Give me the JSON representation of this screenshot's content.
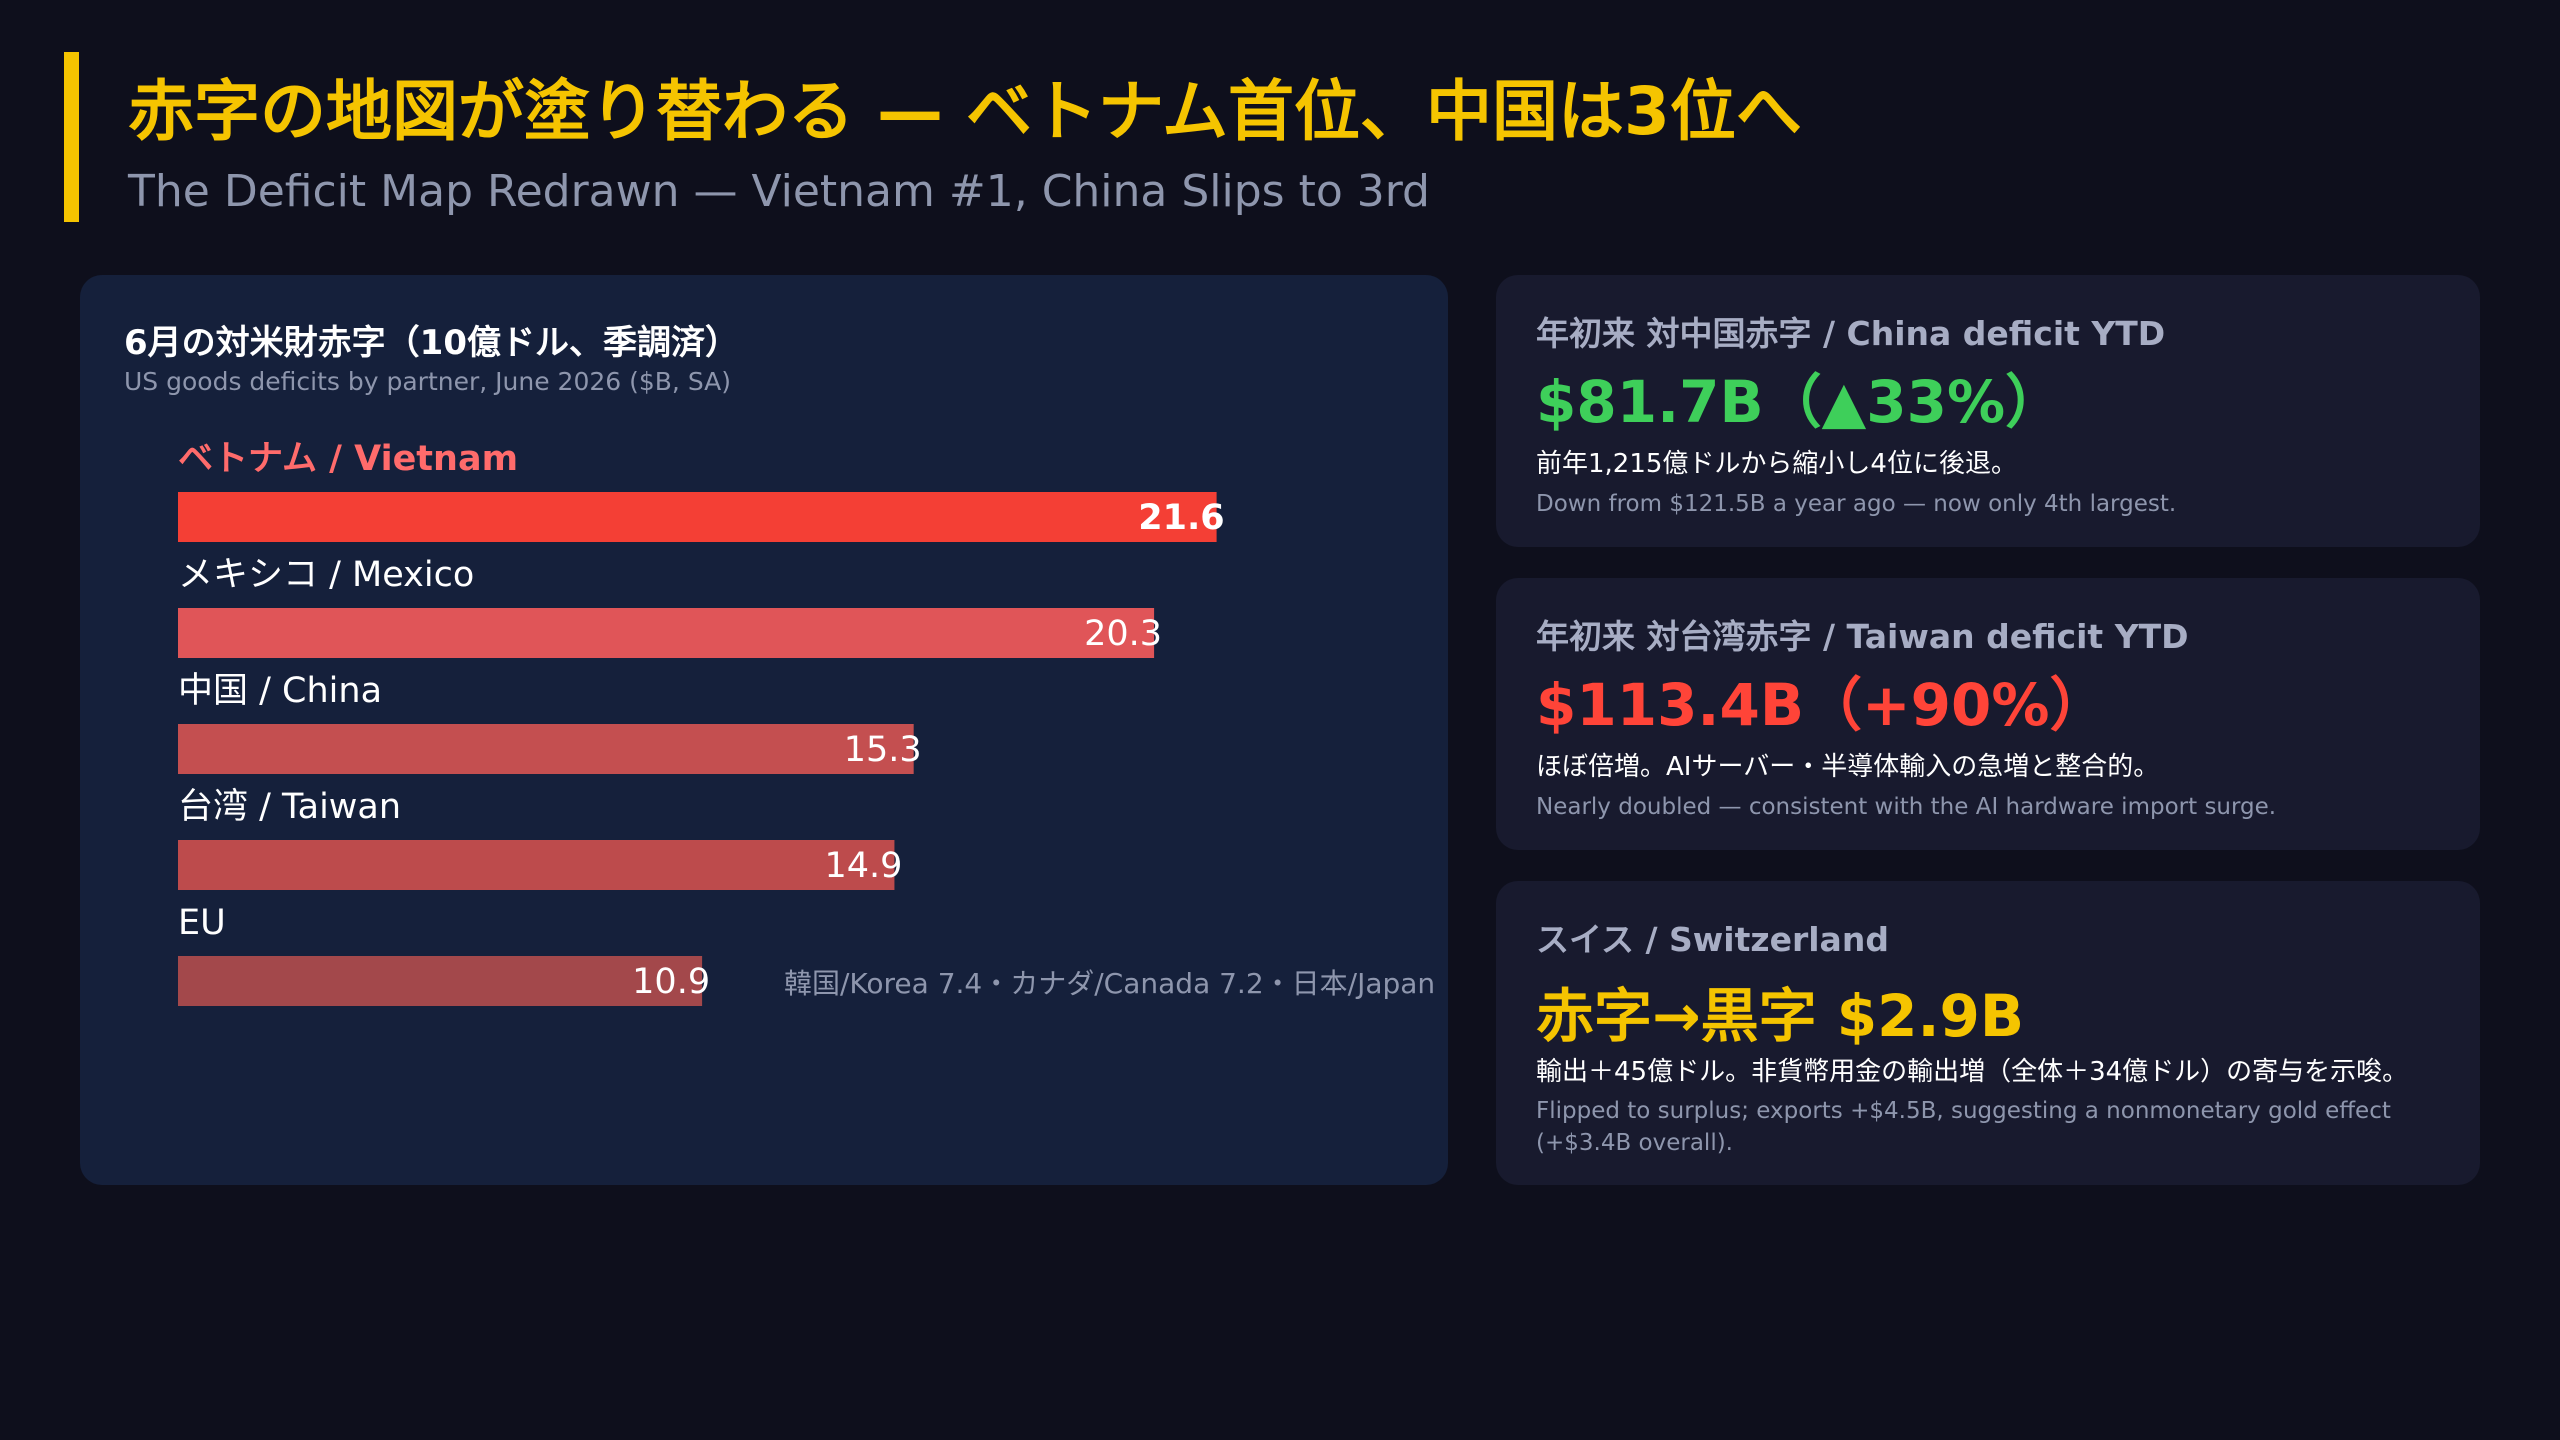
{
  "header": {
    "title": "赤字の地図が塗り替わる — ベトナム首位、中国は3位へ",
    "subtitle": "The Deficit Map Redrawn — Vietnam #1, China Slips to 3rd"
  },
  "colors": {
    "accent": "#f5c400",
    "green": "#3ecf5a",
    "red": "#ff4438",
    "panel": "#15203b"
  },
  "chart_data": {
    "type": "bar",
    "orientation": "horizontal",
    "title": "6月の対米財赤字（10億ドル、季調済）",
    "subtitle": "US goods deficits by partner, June 2026 ($B, SA)",
    "categories": [
      "ベトナム / Vietnam",
      "メキシコ / Mexico",
      "中国 / China",
      "台湾 / Taiwan",
      "EU"
    ],
    "values": [
      21.6,
      20.3,
      15.3,
      14.9,
      10.9
    ],
    "value_labels": [
      "21.6",
      "20.3",
      "15.3",
      "14.9",
      "10.9"
    ],
    "highlight_index": 0,
    "bar_colors": [
      "#f43f35",
      "#e05558",
      "#c44f50",
      "#bd4b4c",
      "#a3484b"
    ],
    "xlim": [
      0,
      24
    ],
    "others_note": "韓国/Korea 7.4・カナダ/Canada 7.2・日本/Japan"
  },
  "cards": [
    {
      "label": "年初来 対中国赤字 / China deficit YTD",
      "value": "$81.7B（▲33%）",
      "value_color": "#3ecf5a",
      "jp": "前年1,215億ドルから縮小し4位に後退。",
      "en": "Down from $121.5B a year ago — now only 4th largest."
    },
    {
      "label": "年初来 対台湾赤字 / Taiwan deficit YTD",
      "value": "$113.4B（+90%）",
      "value_color": "#ff4438",
      "jp": "ほぼ倍増。AIサーバー・半導体輸入の急増と整合的。",
      "en": "Nearly doubled — consistent with the AI hardware import surge."
    },
    {
      "label": "スイス / Switzerland",
      "value": "赤字→黒字 $2.9B",
      "value_color": "#f5c400",
      "jp": "輸出＋45億ドル。非貨幣用金の輸出増（全体＋34億ドル）の寄与を示唆。",
      "en": "Flipped to surplus; exports +$4.5B, suggesting a nonmonetary gold effect (+$3.4B overall)."
    }
  ]
}
